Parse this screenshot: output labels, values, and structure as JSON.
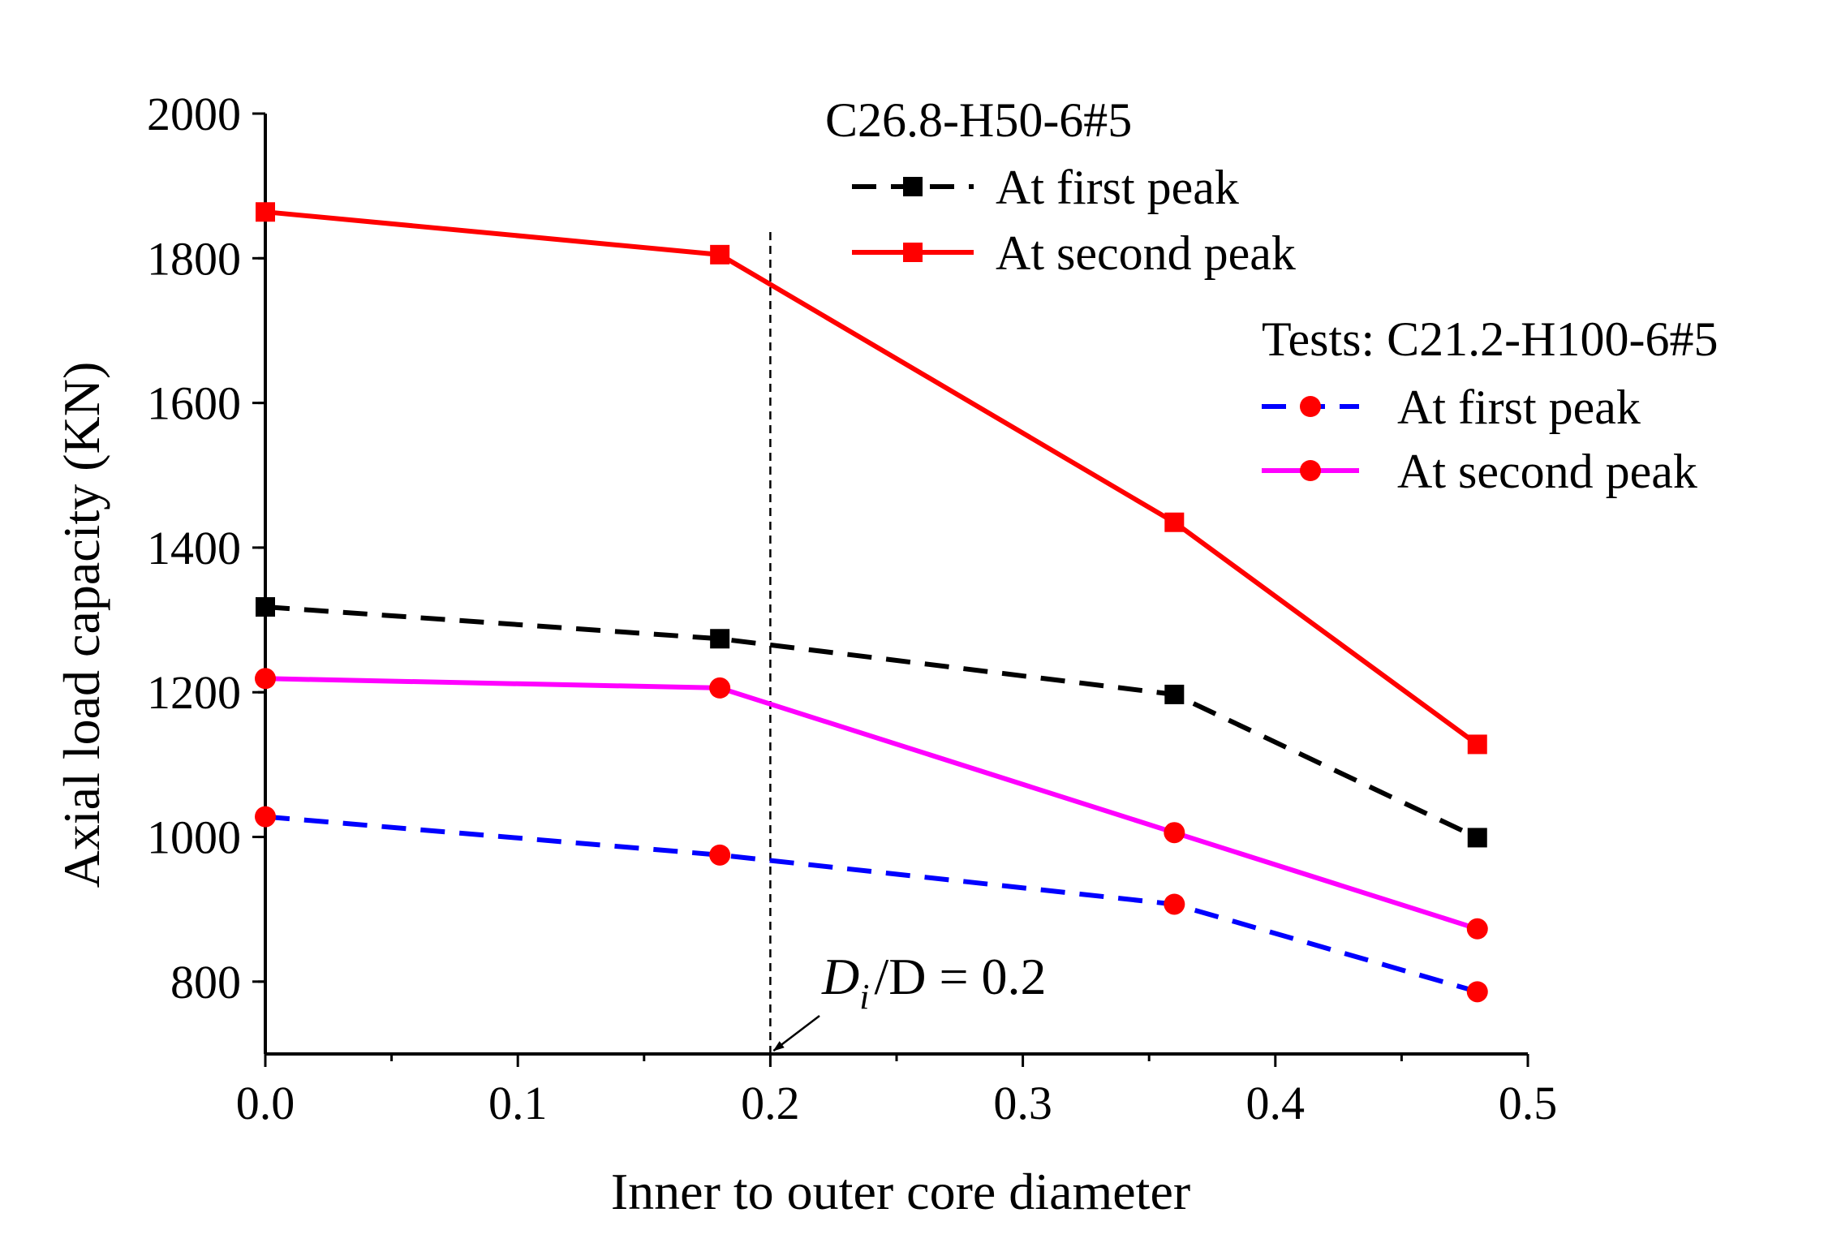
{
  "chart_data": {
    "type": "line",
    "title": "",
    "xlabel": "Inner to outer core diameter",
    "ylabel": "Axial load capacity (KN)",
    "xlim": [
      0.0,
      0.5
    ],
    "ylim": [
      700,
      2000
    ],
    "x_ticks": [
      0.0,
      0.1,
      0.2,
      0.3,
      0.4,
      0.5
    ],
    "x_tick_labels": [
      "0.0",
      "0.1",
      "0.2",
      "0.3",
      "0.4",
      "0.5"
    ],
    "y_ticks": [
      800,
      1000,
      1200,
      1400,
      1600,
      1800,
      2000
    ],
    "y_tick_labels": [
      "800",
      "1000",
      "1200",
      "1400",
      "1600",
      "1800",
      "2000"
    ],
    "grid": false,
    "legend_groups": [
      {
        "title": "C26.8-H50-6#5",
        "series_indices": [
          0,
          1
        ],
        "placement": "top-center"
      },
      {
        "title": "Tests: C21.2-H100-6#5",
        "series_indices": [
          2,
          3
        ],
        "placement": "top-right"
      }
    ],
    "series": [
      {
        "name": "At first peak",
        "group": "C26.8-H50-6#5",
        "color": "#000000",
        "dashed": true,
        "marker": "square",
        "x": [
          0.0,
          0.18,
          0.36,
          0.48
        ],
        "values": [
          1318,
          1274,
          1197,
          999
        ]
      },
      {
        "name": "At second peak",
        "group": "C26.8-H50-6#5",
        "color": "#ff0000",
        "dashed": false,
        "marker": "square",
        "x": [
          0.0,
          0.18,
          0.36,
          0.48
        ],
        "values": [
          1864,
          1805,
          1435,
          1128
        ]
      },
      {
        "name": "At first peak",
        "group": "Tests: C21.2-H100-6#5",
        "color": "#0000ff",
        "dashed": true,
        "marker": "circle",
        "marker_color": "#ff0000",
        "x": [
          0.0,
          0.18,
          0.36,
          0.48
        ],
        "values": [
          1028,
          975,
          907,
          786
        ]
      },
      {
        "name": "At second peak",
        "group": "Tests: C21.2-H100-6#5",
        "color": "#ff00ff",
        "dashed": false,
        "marker": "circle",
        "marker_color": "#ff0000",
        "x": [
          0.0,
          0.18,
          0.36,
          0.48
        ],
        "values": [
          1219,
          1206,
          1006,
          873
        ]
      }
    ],
    "reference_line": {
      "x": 0.2,
      "dashed": true
    },
    "annotation": {
      "main": "D",
      "sub": "i",
      "rest": "/D = 0.2",
      "x": 0.2
    }
  }
}
